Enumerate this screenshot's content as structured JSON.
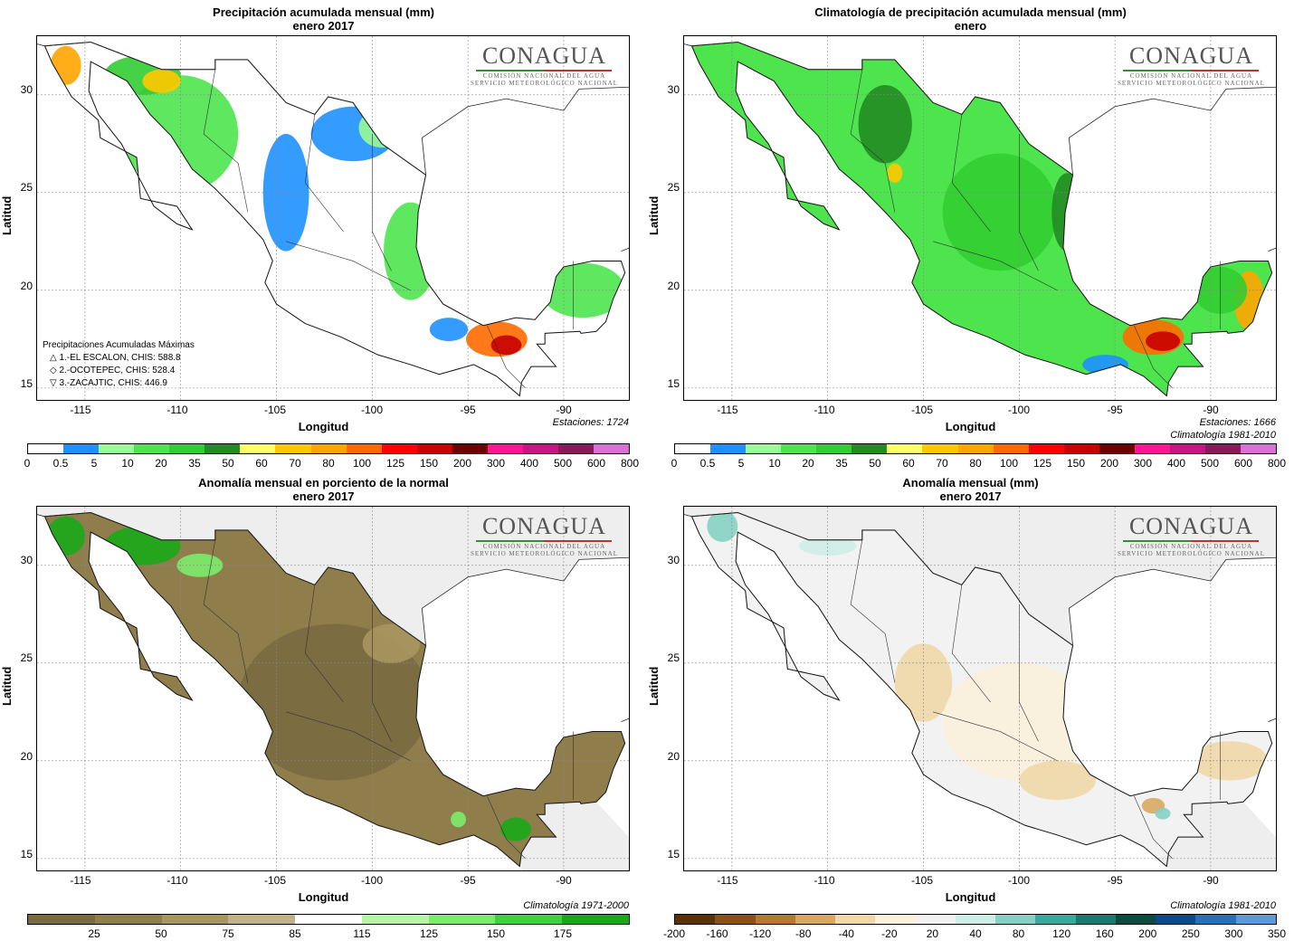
{
  "panels": [
    {
      "title_line1": "Precipitación acumulada mensual (mm)",
      "title_line2": "enero 2017",
      "note": "Estaciones:  1724",
      "legend_header": "Precipitaciones Acumuladas Máximas",
      "legend_items": [
        "△  1.-EL ESCALON, CHIS: 588.8",
        "◇  2.-OCOTEPEC, CHIS: 528.4",
        "▽  3.-ZACAJTIC, CHIS: 446.9"
      ],
      "cbar_colors": [
        "#ffffff",
        "#1e90ff",
        "#98fb98",
        "#4ee44e",
        "#32cd32",
        "#228b22",
        "#ffff66",
        "#ffc800",
        "#ffa500",
        "#ff6a00",
        "#ff0000",
        "#c80000",
        "#6e0000",
        "#ff1493",
        "#c71585",
        "#8b1a5a",
        "#da70d6"
      ],
      "cbar_labels": [
        "0",
        "0.5",
        "5",
        "10",
        "20",
        "35",
        "50",
        "60",
        "70",
        "80",
        "100",
        "125",
        "150",
        "200",
        "300",
        "400",
        "500",
        "600",
        "800"
      ]
    },
    {
      "title_line1": "Climatología de precipitación acumulada mensual (mm)",
      "title_line2": "enero",
      "note": "Estaciones:  1666",
      "note2": "Climatología 1981-2010",
      "cbar_colors": [
        "#ffffff",
        "#1e90ff",
        "#98fb98",
        "#4ee44e",
        "#32cd32",
        "#228b22",
        "#ffff66",
        "#ffc800",
        "#ffa500",
        "#ff6a00",
        "#ff0000",
        "#c80000",
        "#6e0000",
        "#ff1493",
        "#c71585",
        "#8b1a5a",
        "#da70d6"
      ],
      "cbar_labels": [
        "0",
        "0.5",
        "5",
        "10",
        "20",
        "35",
        "50",
        "60",
        "70",
        "80",
        "100",
        "125",
        "150",
        "200",
        "300",
        "400",
        "500",
        "600",
        "800"
      ]
    },
    {
      "title_line1": "Anomalía mensual en porciento de la normal",
      "title_line2": "enero 2017",
      "note": "Climatología 1971-2000",
      "cbar_colors": [
        "#7a6a40",
        "#8f7d4c",
        "#a8965f",
        "#c2b285",
        "#ffffff",
        "#b5f5a5",
        "#7cec6c",
        "#3ed33e",
        "#1aa81a"
      ],
      "cbar_labels": [
        "25",
        "50",
        "75",
        "85",
        "115",
        "125",
        "150",
        "175"
      ]
    },
    {
      "title_line1": "Anomalía mensual (mm)",
      "title_line2": "enero 2017",
      "note": "Climatología 1981-2010",
      "cbar_colors": [
        "#5a3208",
        "#8a5218",
        "#b57a32",
        "#d9a860",
        "#f0d8a8",
        "#fbf0dc",
        "#f2f2f2",
        "#cdeee6",
        "#86d1c4",
        "#3aa89a",
        "#1a7a70",
        "#0c4c40",
        "#0a4a8a",
        "#2a70b8",
        "#5a9ad8"
      ],
      "cbar_labels": [
        "-200",
        "-160",
        "-120",
        "-80",
        "-40",
        "-20",
        "20",
        "40",
        "80",
        "120",
        "160",
        "200",
        "250",
        "300",
        "350"
      ]
    }
  ],
  "axes": {
    "ylabel": "Latitud",
    "xlabel": "Longitud",
    "yticks": [
      "30",
      "25",
      "20",
      "15"
    ],
    "xticks": [
      "-115",
      "-110",
      "-105",
      "-100",
      "-95",
      "-90"
    ]
  },
  "logo": {
    "word": "CONAGUA",
    "sub1": "COMISIÓN NACIONAL DEL AGUA",
    "sub2": "SERVICIO METEOROLÓGICO NACIONAL"
  }
}
